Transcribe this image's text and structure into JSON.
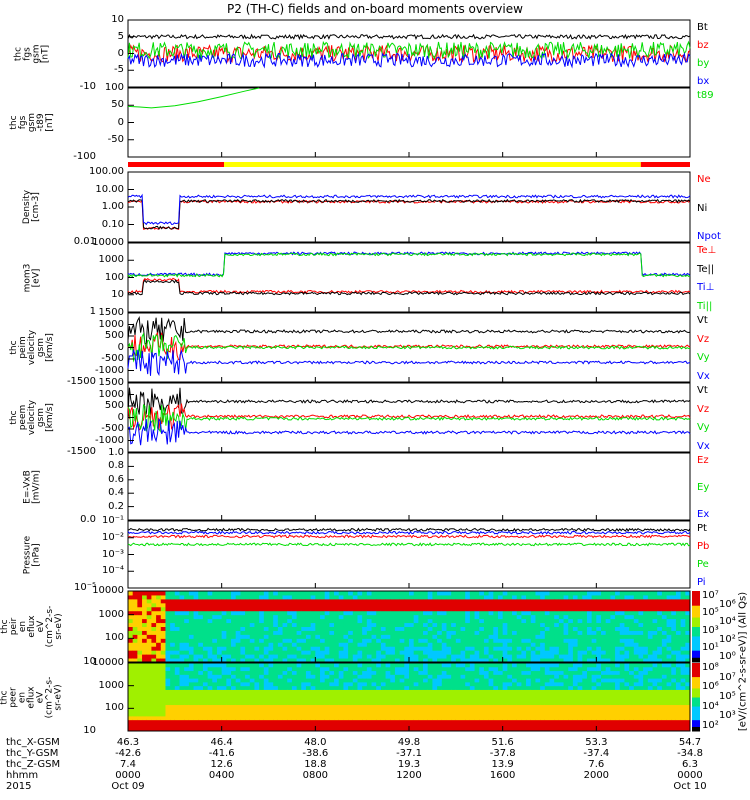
{
  "title": "P2 (TH-C) fields and on-board moments overview",
  "chart_data": [
    {
      "type": "line",
      "id": "fgs",
      "ylabel": "thc\nfgs\ngsm\n[nT]",
      "ylim": [
        -10,
        10
      ],
      "scale": "linear",
      "ticks": [
        "10",
        "5",
        "0",
        "-5",
        "-10"
      ],
      "series": [
        {
          "name": "Bt",
          "color": "#000000",
          "level": 5,
          "noise": 0.6
        },
        {
          "name": "bz",
          "color": "#ff0000",
          "level": 0,
          "noise": 2.5
        },
        {
          "name": "by",
          "color": "#00dd00",
          "level": 1,
          "noise": 2.5
        },
        {
          "name": "bx",
          "color": "#0000ff",
          "level": -2,
          "noise": 2
        }
      ]
    },
    {
      "type": "line",
      "id": "t89",
      "ylabel": "thc\nfgs\ngsm\n-t89\n[nT]",
      "ylim": [
        -125,
        100
      ],
      "scale": "linear",
      "ticks": [
        "100",
        "50",
        "0",
        "-50",
        "-100"
      ],
      "series": [
        {
          "name": "t89",
          "color": "#00dd00",
          "points": [
            [
              0,
              40
            ],
            [
              0.5,
              38
            ],
            [
              1,
              35
            ],
            [
              2,
              42
            ],
            [
              3,
              55
            ],
            [
              4,
              72
            ],
            [
              5,
              90
            ],
            [
              5.6,
              100
            ]
          ]
        }
      ]
    },
    {
      "type": "line",
      "id": "density",
      "ylabel": "Density\n[cm-3]",
      "ylim": [
        0.01,
        100
      ],
      "scale": "log",
      "ticks": [
        "100.00",
        "10.00",
        "1.00",
        "0.10",
        "0.01"
      ],
      "series": [
        {
          "name": "Ne",
          "color": "#ff0000",
          "level": 2
        },
        {
          "name": "Ni",
          "color": "#000000",
          "level": 2.2
        },
        {
          "name": "Npot",
          "color": "#0000ff",
          "level": 4
        }
      ]
    },
    {
      "type": "line",
      "id": "moms",
      "ylabel": "mom3\n[eV]",
      "ylim": [
        1,
        10000
      ],
      "scale": "log",
      "ticks": [
        "10000",
        "1000",
        "100",
        "10",
        "1"
      ],
      "series": [
        {
          "name": "Te⊥",
          "color": "#ff0000",
          "level": 15
        },
        {
          "name": "Te||",
          "color": "#000000",
          "level": 12
        },
        {
          "name": "Ti⊥",
          "color": "#0000ff",
          "level": 2500
        },
        {
          "name": "Ti||",
          "color": "#00dd00",
          "level": 2200
        }
      ]
    },
    {
      "type": "line",
      "id": "peim",
      "ylabel": "thc\npeim\nvelocity\ngsm\n[km/s]",
      "ylim": [
        -1500,
        1500
      ],
      "scale": "linear",
      "ticks": [
        "1500",
        "1000",
        "500",
        "0",
        "-500",
        "-1000",
        "-1500"
      ],
      "series": [
        {
          "name": "Vt",
          "color": "#000000",
          "level": 700
        },
        {
          "name": "Vz",
          "color": "#ff0000",
          "level": 50
        },
        {
          "name": "Vy",
          "color": "#00dd00",
          "level": 0
        },
        {
          "name": "Vx",
          "color": "#0000ff",
          "level": -650
        }
      ]
    },
    {
      "type": "line",
      "id": "peem",
      "ylabel": "thc\npeem\nvelocity\ngsm\n[km/s]",
      "ylim": [
        -1500,
        1500
      ],
      "scale": "linear",
      "ticks": [
        "1500",
        "1000",
        "500",
        "0",
        "-500",
        "-1000",
        "-1500"
      ],
      "series": [
        {
          "name": "Vt",
          "color": "#000000",
          "level": 700
        },
        {
          "name": "Vz",
          "color": "#ff0000",
          "level": 50
        },
        {
          "name": "Vy",
          "color": "#00dd00",
          "level": -50
        },
        {
          "name": "Vx",
          "color": "#0000ff",
          "level": -650
        }
      ]
    },
    {
      "type": "line",
      "id": "efield",
      "ylabel": "E=-VxB\n[mV/m]",
      "ylim": [
        0,
        1
      ],
      "scale": "linear",
      "ticks": [
        "1.0",
        "0.8",
        "0.6",
        "0.4",
        "0.2",
        "0.0"
      ],
      "series": [
        {
          "name": "Ez",
          "color": "#ff0000"
        },
        {
          "name": "Ey",
          "color": "#00dd00"
        },
        {
          "name": "Ex",
          "color": "#0000ff"
        }
      ]
    },
    {
      "type": "line",
      "id": "pressure",
      "ylabel": "Pressure\n[nPa]",
      "ylim": [
        1e-05,
        0.1
      ],
      "scale": "log",
      "ticks": [
        "10⁻¹",
        "10⁻²",
        "10⁻³",
        "10⁻⁴",
        "10⁻⁵"
      ],
      "series": [
        {
          "name": "Pt",
          "color": "#000000",
          "level": 0.03
        },
        {
          "name": "Pb",
          "color": "#ff0000",
          "level": 0.012
        },
        {
          "name": "Pe",
          "color": "#00dd00",
          "level": 0.004
        },
        {
          "name": "Pi",
          "color": "#0000ff",
          "level": 0.02
        }
      ]
    },
    {
      "type": "heatmap",
      "id": "peir",
      "ylabel": "thc\npeir\nen\neflux\neV\n(cm^2-s-\nsr-eV)",
      "ylim": [
        5,
        30000
      ],
      "scale": "log",
      "ticks": [
        "10000",
        "1000",
        "100",
        "10"
      ],
      "colorbar_ticks": [
        "10⁷",
        "10⁶",
        "10⁵",
        "10⁴",
        "10³",
        "10²",
        "10¹",
        "10⁰"
      ]
    },
    {
      "type": "heatmap",
      "id": "peer",
      "ylabel": "thc\npeer\nen\neflux\neV\n(cm^2-s-\nsr-eV)",
      "ylim": [
        5,
        30000
      ],
      "scale": "log",
      "ticks": [
        "10000",
        "1000",
        "100",
        "10"
      ],
      "colorbar_ticks": [
        "10⁸",
        "10⁷",
        "10⁶",
        "10⁵",
        "10⁴",
        "10³",
        "10²"
      ]
    }
  ],
  "colorbar_label": "[eV/(cm^2-s-sr-eV)] (All Qs)",
  "region_bar": [
    {
      "from": 0,
      "to": 4.1,
      "color": "#ff0000"
    },
    {
      "from": 4.1,
      "to": 21.9,
      "color": "#ffff00"
    },
    {
      "from": 21.9,
      "to": 24,
      "color": "#ff0000"
    }
  ],
  "x_rows": [
    "thc_X-GSM",
    "thc_Y-GSM",
    "thc_Z-GSM",
    "hhmm",
    "2015"
  ],
  "x_ticks": [
    {
      "hour": 0,
      "vals": [
        "46.3",
        "-42.6",
        "7.4",
        "0000",
        "Oct 09"
      ]
    },
    {
      "hour": 4,
      "vals": [
        "46.4",
        "-41.6",
        "12.6",
        "0400",
        ""
      ]
    },
    {
      "hour": 8,
      "vals": [
        "48.0",
        "-38.6",
        "18.8",
        "0800",
        ""
      ]
    },
    {
      "hour": 12,
      "vals": [
        "49.8",
        "-37.1",
        "19.3",
        "1200",
        ""
      ]
    },
    {
      "hour": 16,
      "vals": [
        "51.6",
        "-37.8",
        "13.9",
        "1600",
        ""
      ]
    },
    {
      "hour": 20,
      "vals": [
        "53.3",
        "-37.4",
        "7.6",
        "2000",
        ""
      ]
    },
    {
      "hour": 24,
      "vals": [
        "54.7",
        "-34.8",
        "6.3",
        "0000",
        "Oct 10"
      ]
    }
  ]
}
